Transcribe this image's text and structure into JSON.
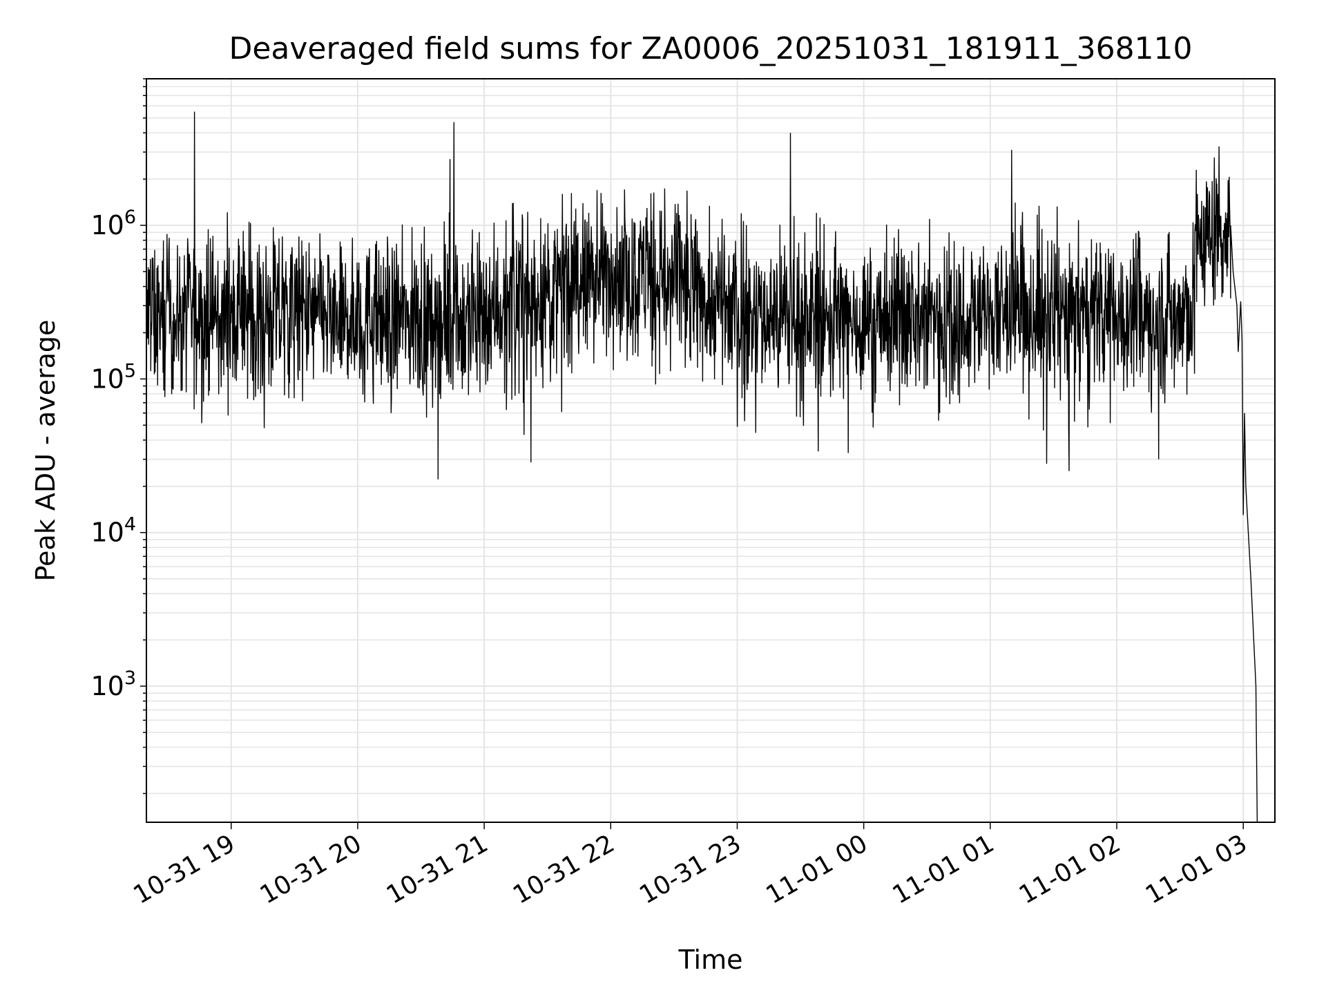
{
  "chart_data": {
    "type": "line",
    "title": "Deaveraged field sums for ZA0006_20251031_181911_368110",
    "xlabel": "Time",
    "ylabel": "Peak ADU - average",
    "yscale": "log",
    "ylim": [
      130,
      9000000
    ],
    "xlim_hours": [
      18.33,
      27.25
    ],
    "x_ticks": [
      {
        "label": "10-31 19",
        "hour": 19
      },
      {
        "label": "10-31 20",
        "hour": 20
      },
      {
        "label": "10-31 21",
        "hour": 21
      },
      {
        "label": "10-31 22",
        "hour": 22
      },
      {
        "label": "10-31 23",
        "hour": 23
      },
      {
        "label": "11-01 00",
        "hour": 24
      },
      {
        "label": "11-01 01",
        "hour": 25
      },
      {
        "label": "11-01 02",
        "hour": 26
      },
      {
        "label": "11-01 03",
        "hour": 27
      }
    ],
    "y_ticks": [
      {
        "base": "10",
        "exp": "3",
        "value": 1000
      },
      {
        "base": "10",
        "exp": "4",
        "value": 10000
      },
      {
        "base": "10",
        "exp": "5",
        "value": 100000
      },
      {
        "base": "10",
        "exp": "6",
        "value": 1000000
      }
    ],
    "grid": true,
    "line_color": "#000000",
    "grid_color": "#e5e5e5",
    "series": [
      {
        "name": "field sums",
        "baseline": [
          [
            18.33,
            250000
          ],
          [
            19.5,
            260000
          ],
          [
            20.5,
            240000
          ],
          [
            21.0,
            280000
          ],
          [
            21.5,
            360000
          ],
          [
            22.0,
            520000
          ],
          [
            22.5,
            420000
          ],
          [
            23.0,
            260000
          ],
          [
            24.0,
            240000
          ],
          [
            25.0,
            260000
          ],
          [
            26.0,
            260000
          ],
          [
            26.6,
            260000
          ],
          [
            26.62,
            800000
          ],
          [
            26.9,
            950000
          ]
        ],
        "spikes": [
          {
            "hour": 18.71,
            "value": 5500000
          },
          {
            "hour": 20.73,
            "value": 2700000
          },
          {
            "hour": 20.76,
            "value": 4700000
          },
          {
            "hour": 21.23,
            "value": 1400000
          },
          {
            "hour": 23.42,
            "value": 4000000
          },
          {
            "hour": 23.45,
            "value": 1150000
          },
          {
            "hour": 24.52,
            "value": 1100000
          },
          {
            "hour": 25.17,
            "value": 3100000
          },
          {
            "hour": 26.63,
            "value": 2300000
          },
          {
            "hour": 26.8,
            "value": 1600000
          }
        ],
        "tail": [
          [
            26.9,
            1000000
          ],
          [
            26.92,
            500000
          ],
          [
            26.95,
            300000
          ],
          [
            26.96,
            150000
          ],
          [
            26.98,
            320000
          ],
          [
            26.99,
            180000
          ],
          [
            27.0,
            13000
          ],
          [
            27.01,
            60000
          ],
          [
            27.02,
            20000
          ],
          [
            27.04,
            10000
          ],
          [
            27.06,
            5000
          ],
          [
            27.1,
            1000
          ],
          [
            27.11,
            130
          ]
        ]
      }
    ]
  }
}
